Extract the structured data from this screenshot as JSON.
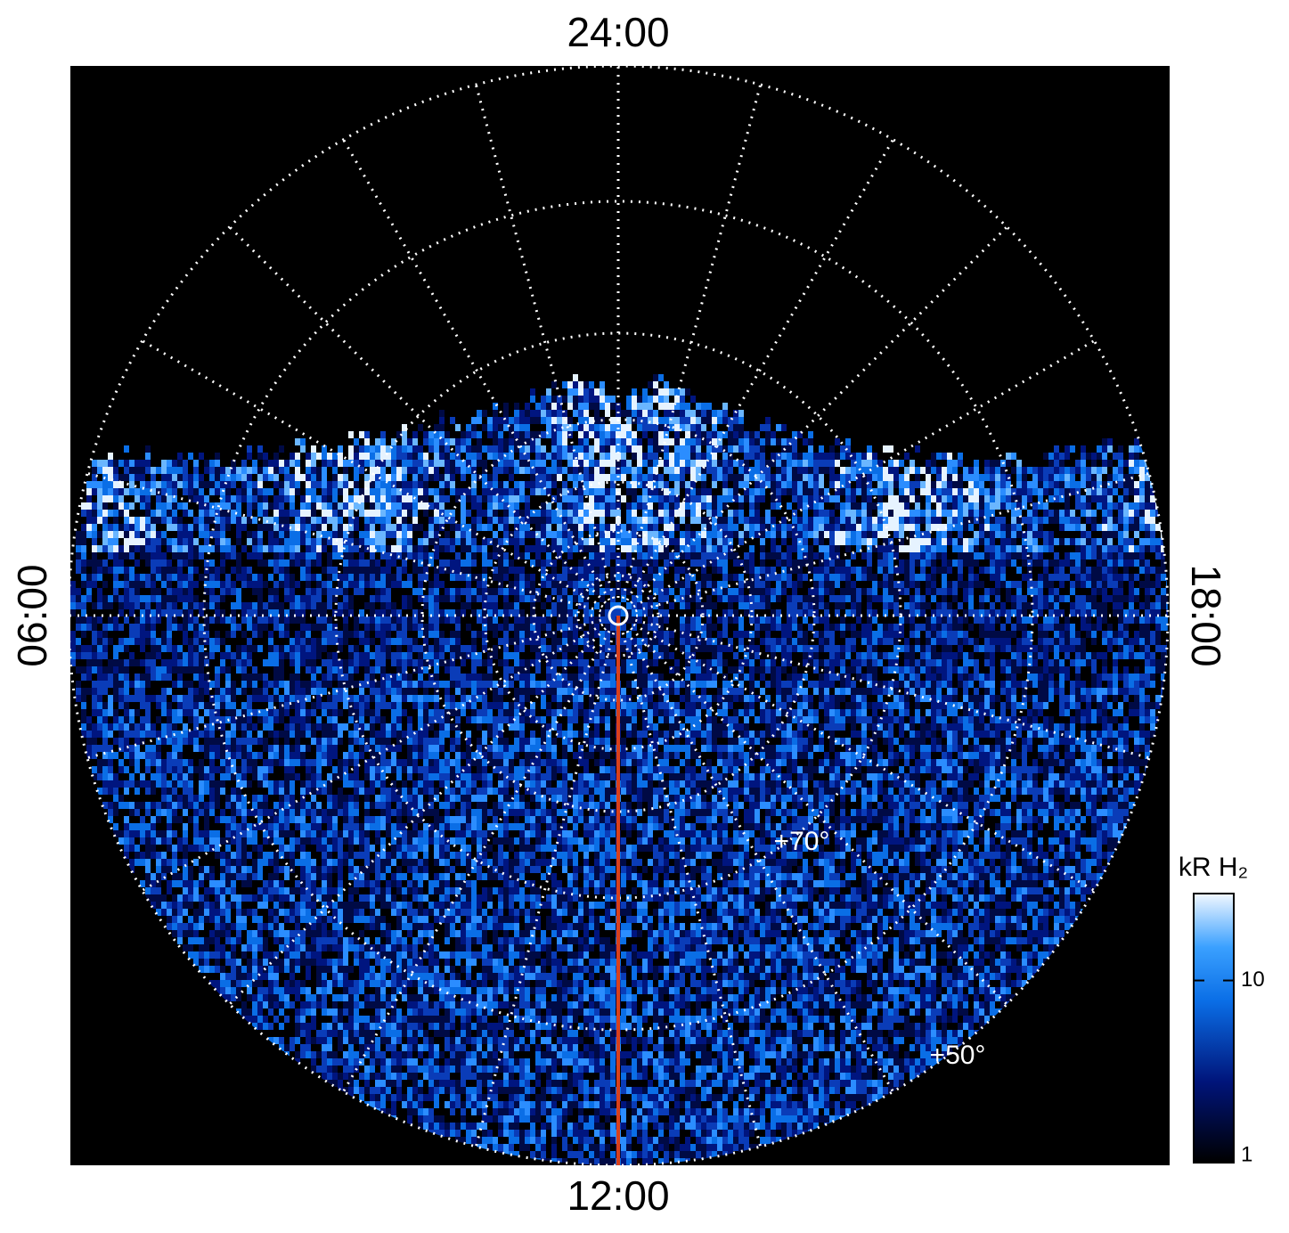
{
  "chart_data": {
    "type": "polar-image",
    "local_time_labels": {
      "top": "24:00",
      "left": "06:00",
      "bottom": "12:00",
      "right": "18:00"
    },
    "latitude_labels": [
      "+70°",
      "+50°"
    ],
    "colorbar": {
      "title": "kR H₂",
      "log": true,
      "zlim": [
        1,
        30
      ],
      "zticks": [
        1,
        10
      ]
    }
  }
}
